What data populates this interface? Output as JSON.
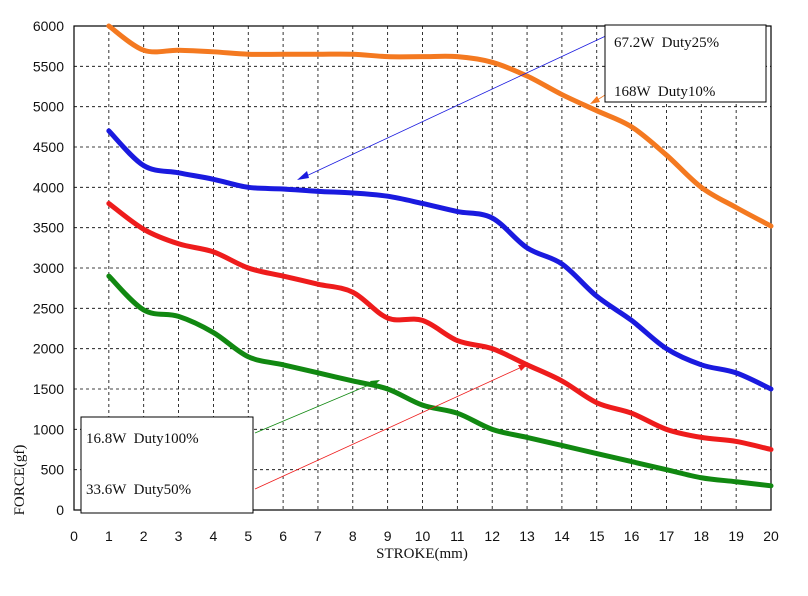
{
  "chart_data": {
    "type": "line",
    "title": "",
    "xlabel": "STROKE(mm)",
    "ylabel": "FORCE(gf)",
    "xlim": [
      0,
      20
    ],
    "ylim": [
      0,
      6000
    ],
    "x_ticks": [
      "0",
      "1",
      "2",
      "3",
      "4",
      "5",
      "6",
      "7",
      "8",
      "9",
      "10",
      "11",
      "12",
      "13",
      "14",
      "15",
      "16",
      "17",
      "18",
      "19",
      "20"
    ],
    "y_ticks": [
      "0",
      "500",
      "1000",
      "1500",
      "2000",
      "2500",
      "3000",
      "3500",
      "4000",
      "4500",
      "5000",
      "5500",
      "6000"
    ],
    "grid": true,
    "x": [
      1,
      2,
      3,
      4,
      5,
      6,
      7,
      8,
      9,
      10,
      11,
      12,
      13,
      14,
      15,
      16,
      17,
      18,
      19,
      20
    ],
    "series": [
      {
        "name": "168W Duty10%",
        "color": "#f47920",
        "values": [
          6000,
          5700,
          5700,
          5680,
          5650,
          5650,
          5650,
          5650,
          5620,
          5620,
          5620,
          5550,
          5380,
          5150,
          4950,
          4750,
          4400,
          4000,
          3750,
          3520
        ]
      },
      {
        "name": "67.2W Duty25%",
        "color": "#1a1adf",
        "values": [
          4700,
          4270,
          4180,
          4100,
          4000,
          3980,
          3950,
          3930,
          3890,
          3800,
          3700,
          3620,
          3250,
          3050,
          2650,
          2350,
          2000,
          1800,
          1700,
          1500
        ]
      },
      {
        "name": "33.6W Duty50%",
        "color": "#ee1c1c",
        "values": [
          3800,
          3480,
          3300,
          3200,
          3000,
          2900,
          2800,
          2700,
          2380,
          2350,
          2100,
          2000,
          1800,
          1600,
          1330,
          1200,
          1000,
          900,
          850,
          750
        ]
      },
      {
        "name": "16.8W Duty100%",
        "color": "#118811",
        "values": [
          2900,
          2480,
          2400,
          2200,
          1900,
          1800,
          1700,
          1600,
          1500,
          1300,
          1200,
          1000,
          900,
          800,
          700,
          600,
          500,
          400,
          350,
          300
        ]
      }
    ],
    "legend": {
      "top_right_labels": [
        "67.2W  Duty25%",
        "168W  Duty10%"
      ],
      "bottom_left_labels": [
        "16.8W  Duty100%",
        "33.6W  Duty50%"
      ]
    }
  }
}
